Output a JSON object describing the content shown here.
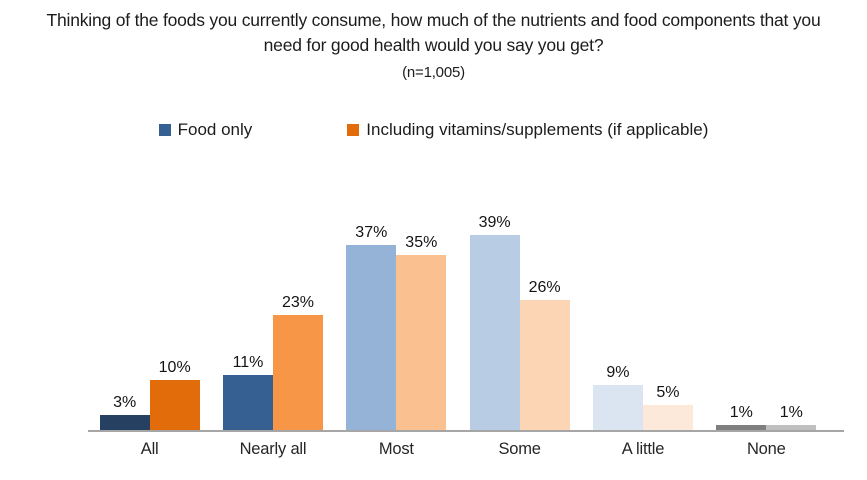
{
  "title_lines": [
    "Thinking of the foods you currently consume, how much of the nutrients and food components that you",
    "need for good health would you say you get?"
  ],
  "subtitle": "(n=1,005)",
  "legend": [
    {
      "label": "Food only",
      "color": "#376092"
    },
    {
      "label": "Including vitamins/supplements (if applicable)",
      "color": "#E36C0A"
    }
  ],
  "colors": {
    "axis_line": "#A6A6A6",
    "label_text": "#1C1C1C"
  },
  "chart_data": {
    "type": "bar",
    "title": "Thinking of the foods you currently consume, how much of the nutrients and food components that you need for good health would you say you get?",
    "subtitle": "(n=1,005)",
    "categories": [
      "All",
      "Nearly all",
      "Most",
      "Some",
      "A little",
      "None"
    ],
    "series": [
      {
        "name": "Food only",
        "values": [
          3,
          11,
          37,
          39,
          9,
          1
        ],
        "colors": [
          "#254061",
          "#376092",
          "#95B3D7",
          "#B8CCE4",
          "#DBE5F1",
          "#7F7F7F"
        ]
      },
      {
        "name": "Including vitamins/supplements (if applicable)",
        "values": [
          10,
          23,
          35,
          26,
          5,
          1
        ],
        "colors": [
          "#E36C0A",
          "#F79646",
          "#FAC090",
          "#FCD5B4",
          "#FDE9D9",
          "#BFBFBF"
        ]
      }
    ],
    "value_suffix": "%",
    "data_labels": true,
    "grid": false,
    "legend_position": "top",
    "ylim": [
      0,
      42
    ],
    "xlabel": "",
    "ylabel": ""
  }
}
